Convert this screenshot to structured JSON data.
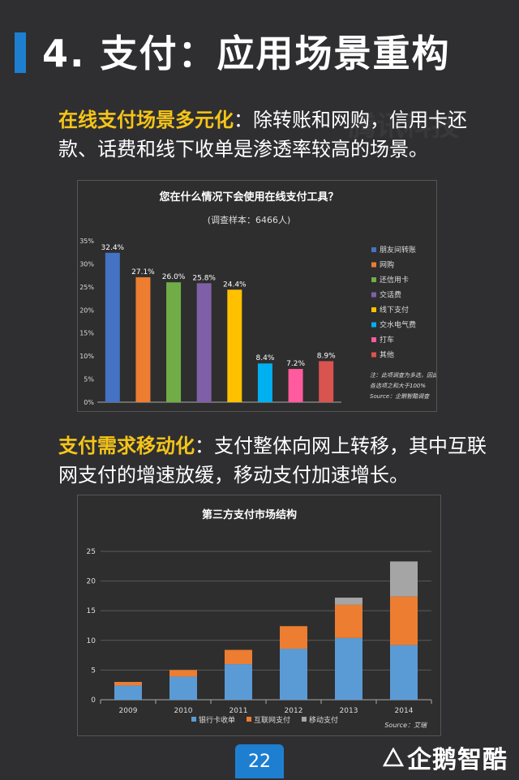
{
  "header": {
    "title": "4. 支付：应用场景重构"
  },
  "section1": {
    "highlight": "在线支付场景多元化",
    "text": "：除转账和网购，信用卡还款、话费和线下收单是渗透率较高的场景。"
  },
  "section2": {
    "highlight": "支付需求移动化",
    "text": "：支付整体向网上转移，其中互联网支付的增速放缓，移动支付加速增长。"
  },
  "watermark_text": "腾讯科技",
  "footer": {
    "page": "22",
    "logo": "企鹅智酷"
  },
  "colors": {
    "accent": "#1e7fd0",
    "highlight": "#f5c518"
  },
  "chart_data": [
    {
      "type": "bar",
      "title": "您在什么情况下会使用在线支付工具？",
      "subtitle": "(调查样本：6466人)",
      "categories": [
        "朋友间转账",
        "网购",
        "还信用卡",
        "交话费",
        "线下支付",
        "交水电气费",
        "打车",
        "其他"
      ],
      "values": [
        32.4,
        27.1,
        26.0,
        25.8,
        24.4,
        8.4,
        7.2,
        8.9
      ],
      "value_labels": [
        "32.4%",
        "27.1%",
        "26.0%",
        "25.8%",
        "24.4%",
        "8.4%",
        "7.2%",
        "8.9%"
      ],
      "colors": [
        "#4472c4",
        "#ed7d31",
        "#70ad47",
        "#7f60a8",
        "#ffc000",
        "#00b0f0",
        "#ff5b9e",
        "#d9534f"
      ],
      "ylim": [
        0,
        35
      ],
      "yticks": [
        0,
        5,
        10,
        15,
        20,
        25,
        30,
        35
      ],
      "ytick_labels": [
        "0%",
        "5%",
        "10%",
        "15%",
        "20%",
        "25%",
        "30%",
        "35%"
      ],
      "legend": "right",
      "note": [
        "注：此项调查为多选，因此",
        "各选项之和大于100%",
        "Source：企鹅智酷调查"
      ]
    },
    {
      "type": "bar",
      "stacked": true,
      "title": "第三方支付市场结构",
      "categories": [
        "2009",
        "2010",
        "2011",
        "2012",
        "2013",
        "2014"
      ],
      "series": [
        {
          "name": "银行卡收单",
          "color": "#5b9bd5",
          "values": [
            2.4,
            3.9,
            6.0,
            8.6,
            10.4,
            9.2
          ]
        },
        {
          "name": "互联网支付",
          "color": "#ed7d31",
          "values": [
            0.6,
            1.1,
            2.4,
            3.8,
            5.6,
            8.2
          ]
        },
        {
          "name": "移动支付",
          "color": "#a5a5a5",
          "values": [
            0.0,
            0.0,
            0.0,
            0.0,
            1.2,
            5.9
          ]
        }
      ],
      "ylim": [
        0,
        25
      ],
      "yticks": [
        0,
        5,
        10,
        15,
        20,
        25
      ],
      "ytick_labels": [
        "0",
        "5",
        "10",
        "15",
        "20",
        "25"
      ],
      "grid": true,
      "legend": "bottom",
      "source": "Source：艾瑞"
    }
  ]
}
